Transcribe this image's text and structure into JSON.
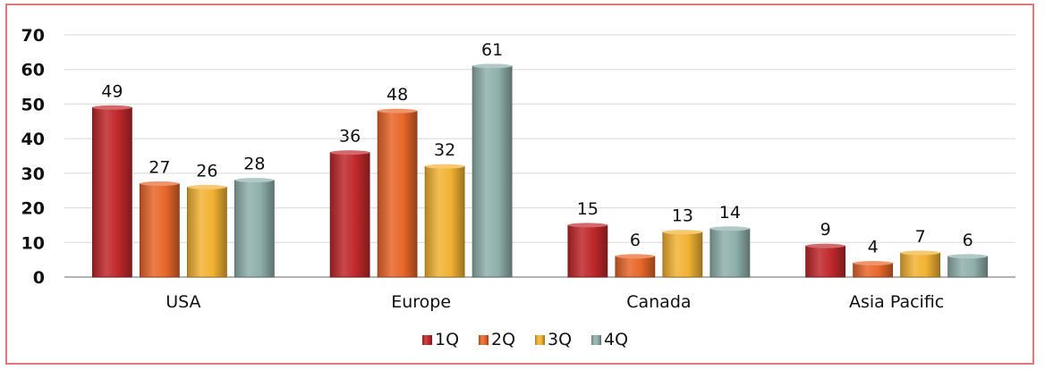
{
  "chart_data": {
    "type": "bar",
    "categories": [
      "USA",
      "Europe",
      "Canada",
      "Asia Pacific"
    ],
    "series": [
      {
        "name": "1Q",
        "color": "#c0282b",
        "values": [
          49,
          36,
          15,
          9
        ]
      },
      {
        "name": "2Q",
        "color": "#e8662a",
        "values": [
          27,
          48,
          6,
          4
        ]
      },
      {
        "name": "3Q",
        "color": "#f2b233",
        "values": [
          26,
          32,
          13,
          7
        ]
      },
      {
        "name": "4Q",
        "color": "#8fb0ab",
        "values": [
          28,
          61,
          14,
          6
        ]
      }
    ],
    "ylim": [
      0,
      70
    ],
    "yticks": [
      0,
      10,
      20,
      30,
      40,
      50,
      60,
      70
    ],
    "grid": true,
    "legend": "bottom",
    "title": "",
    "xlabel": "",
    "ylabel": ""
  }
}
